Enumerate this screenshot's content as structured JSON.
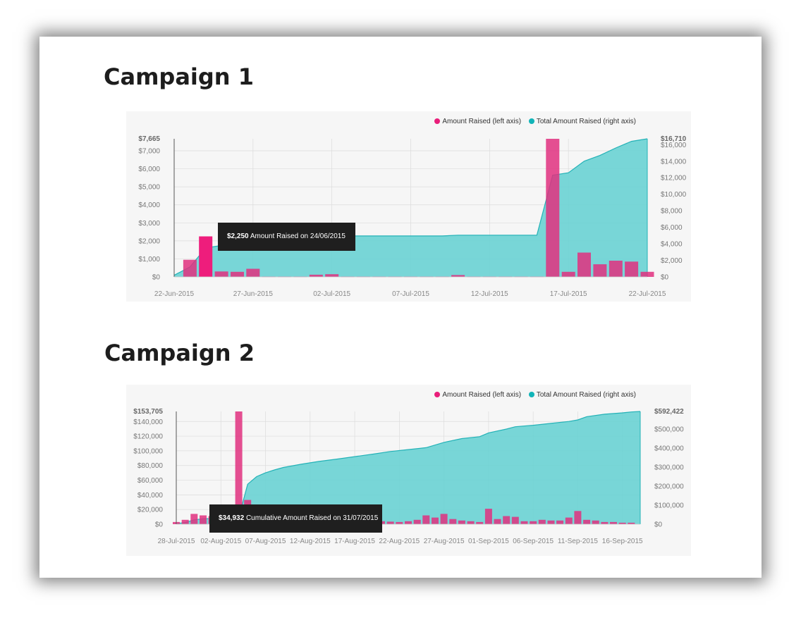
{
  "headings": [
    "Campaign 1",
    "Campaign 2"
  ],
  "colors": {
    "bar": "#e0307f",
    "bar_highlight": "#ee1d7c",
    "area_fill": "#67d1d3",
    "area_line": "#24b2b7",
    "axis_text": "#777777",
    "grid": "#dcdcdc"
  },
  "chart_data": [
    {
      "type": "bar+area",
      "legend": [
        {
          "label": "Amount Raised (left axis)",
          "color": "#e91e7a"
        },
        {
          "label": "Total Amount Raised (right axis)",
          "color": "#12b4b8"
        }
      ],
      "left_axis": {
        "ticks": [
          "$0",
          "$1,000",
          "$2,000",
          "$3,000",
          "$4,000",
          "$5,000",
          "$6,000",
          "$7,000"
        ],
        "tick_values": [
          0,
          1000,
          2000,
          3000,
          4000,
          5000,
          6000,
          7000
        ],
        "max_label": "$7,665",
        "max": 7665
      },
      "right_axis": {
        "ticks": [
          "$0",
          "$2,000",
          "$4,000",
          "$6,000",
          "$8,000",
          "$10,000",
          "$12,000",
          "$14,000",
          "$16,000"
        ],
        "tick_values": [
          0,
          2000,
          4000,
          6000,
          8000,
          10000,
          12000,
          14000,
          16000
        ],
        "max_label": "$16,710",
        "max": 16710
      },
      "x_labels": [
        "22-Jun-2015",
        "27-Jun-2015",
        "02-Jul-2015",
        "07-Jul-2015",
        "12-Jul-2015",
        "17-Jul-2015",
        "22-Jul-2015"
      ],
      "x_label_days": [
        0,
        5,
        10,
        15,
        20,
        25,
        30
      ],
      "bars_left": [
        {
          "day": 1,
          "value": 950
        },
        {
          "day": 2,
          "value": 2250,
          "highlight": true
        },
        {
          "day": 3,
          "value": 300
        },
        {
          "day": 4,
          "value": 280
        },
        {
          "day": 5,
          "value": 450
        },
        {
          "day": 6,
          "value": 20
        },
        {
          "day": 7,
          "value": 20
        },
        {
          "day": 8,
          "value": 20
        },
        {
          "day": 9,
          "value": 120
        },
        {
          "day": 10,
          "value": 150
        },
        {
          "day": 11,
          "value": 20
        },
        {
          "day": 12,
          "value": 20
        },
        {
          "day": 13,
          "value": 20
        },
        {
          "day": 14,
          "value": 20
        },
        {
          "day": 15,
          "value": 20
        },
        {
          "day": 16,
          "value": 20
        },
        {
          "day": 17,
          "value": 20
        },
        {
          "day": 18,
          "value": 100
        },
        {
          "day": 19,
          "value": 20
        },
        {
          "day": 20,
          "value": 20
        },
        {
          "day": 21,
          "value": 20
        },
        {
          "day": 22,
          "value": 20
        },
        {
          "day": 23,
          "value": 20
        },
        {
          "day": 24,
          "value": 7665
        },
        {
          "day": 25,
          "value": 280
        },
        {
          "day": 26,
          "value": 1350
        },
        {
          "day": 27,
          "value": 700
        },
        {
          "day": 28,
          "value": 900
        },
        {
          "day": 29,
          "value": 850
        },
        {
          "day": 30,
          "value": 280
        }
      ],
      "cumulative_right": [
        [
          0,
          200
        ],
        [
          1,
          1200
        ],
        [
          2,
          3500
        ],
        [
          3,
          3800
        ],
        [
          4,
          4100
        ],
        [
          5,
          4600
        ],
        [
          6,
          4650
        ],
        [
          7,
          4650
        ],
        [
          8,
          4700
        ],
        [
          9,
          4800
        ],
        [
          10,
          4950
        ],
        [
          15,
          4950
        ],
        [
          17,
          4950
        ],
        [
          18,
          5050
        ],
        [
          23,
          5050
        ],
        [
          24,
          12300
        ],
        [
          25,
          12600
        ],
        [
          26,
          14000
        ],
        [
          27,
          14700
        ],
        [
          28,
          15600
        ],
        [
          29,
          16400
        ],
        [
          30,
          16710
        ]
      ],
      "tooltip": {
        "value": "$2,250",
        "text": "Amount Raised on 24/06/2015"
      }
    },
    {
      "type": "bar+area",
      "legend": [
        {
          "label": "Amount Raised (left axis)",
          "color": "#e91e7a"
        },
        {
          "label": "Total Amount Raised (right axis)",
          "color": "#12b4b8"
        }
      ],
      "left_axis": {
        "ticks": [
          "$0",
          "$20,000",
          "$40,000",
          "$60,000",
          "$80,000",
          "$100,000",
          "$120,000",
          "$140,000"
        ],
        "tick_values": [
          0,
          20000,
          40000,
          60000,
          80000,
          100000,
          120000,
          140000
        ],
        "max_label": "$153,705",
        "max": 153705
      },
      "right_axis": {
        "ticks": [
          "$0",
          "$100,000",
          "$200,000",
          "$300,000",
          "$400,000",
          "$500,000"
        ],
        "tick_values": [
          0,
          100000,
          200000,
          300000,
          400000,
          500000
        ],
        "max_label": "$592,422",
        "max": 592422
      },
      "x_labels": [
        "28-Jul-2015",
        "02-Aug-2015",
        "07-Aug-2015",
        "12-Aug-2015",
        "17-Aug-2015",
        "22-Aug-2015",
        "27-Aug-2015",
        "01-Sep-2015",
        "06-Sep-2015",
        "11-Sep-2015",
        "16-Sep-2015"
      ],
      "x_label_days": [
        0,
        5,
        10,
        15,
        20,
        25,
        30,
        35,
        40,
        45,
        50
      ],
      "bars_left": [
        {
          "day": 0,
          "value": 3000
        },
        {
          "day": 1,
          "value": 6000
        },
        {
          "day": 2,
          "value": 14000
        },
        {
          "day": 3,
          "value": 12000
        },
        {
          "day": 4,
          "value": 11000
        },
        {
          "day": 5,
          "value": 5000
        },
        {
          "day": 6,
          "value": 4000
        },
        {
          "day": 7,
          "value": 153705
        },
        {
          "day": 8,
          "value": 33000
        },
        {
          "day": 9,
          "value": 6000
        },
        {
          "day": 10,
          "value": 4000
        },
        {
          "day": 11,
          "value": 3000
        },
        {
          "day": 12,
          "value": 3000
        },
        {
          "day": 13,
          "value": 4000
        },
        {
          "day": 14,
          "value": 3000
        },
        {
          "day": 15,
          "value": 3000
        },
        {
          "day": 16,
          "value": 3000
        },
        {
          "day": 17,
          "value": 3000
        },
        {
          "day": 18,
          "value": 3000
        },
        {
          "day": 19,
          "value": 3000
        },
        {
          "day": 20,
          "value": 3000
        },
        {
          "day": 21,
          "value": 3000
        },
        {
          "day": 22,
          "value": 3000
        },
        {
          "day": 23,
          "value": 4000
        },
        {
          "day": 24,
          "value": 3500
        },
        {
          "day": 25,
          "value": 3000
        },
        {
          "day": 26,
          "value": 4000
        },
        {
          "day": 27,
          "value": 6000
        },
        {
          "day": 28,
          "value": 12000
        },
        {
          "day": 29,
          "value": 9000
        },
        {
          "day": 30,
          "value": 14000
        },
        {
          "day": 31,
          "value": 7000
        },
        {
          "day": 32,
          "value": 5000
        },
        {
          "day": 33,
          "value": 4000
        },
        {
          "day": 34,
          "value": 3000
        },
        {
          "day": 35,
          "value": 21000
        },
        {
          "day": 36,
          "value": 7000
        },
        {
          "day": 37,
          "value": 11000
        },
        {
          "day": 38,
          "value": 10000
        },
        {
          "day": 39,
          "value": 4000
        },
        {
          "day": 40,
          "value": 4000
        },
        {
          "day": 41,
          "value": 6000
        },
        {
          "day": 42,
          "value": 5000
        },
        {
          "day": 43,
          "value": 5000
        },
        {
          "day": 44,
          "value": 9000
        },
        {
          "day": 45,
          "value": 18000
        },
        {
          "day": 46,
          "value": 6000
        },
        {
          "day": 47,
          "value": 5000
        },
        {
          "day": 48,
          "value": 3000
        },
        {
          "day": 49,
          "value": 3000
        },
        {
          "day": 50,
          "value": 2000
        },
        {
          "day": 51,
          "value": 2000
        }
      ],
      "cumulative_right": [
        [
          0,
          3000
        ],
        [
          1,
          9000
        ],
        [
          2,
          23000
        ],
        [
          3,
          28000
        ],
        [
          4,
          30000
        ],
        [
          5,
          32000
        ],
        [
          6,
          33000
        ],
        [
          7,
          34932
        ],
        [
          8,
          210000
        ],
        [
          9,
          250000
        ],
        [
          10,
          270000
        ],
        [
          11,
          285000
        ],
        [
          12,
          298000
        ],
        [
          14,
          315000
        ],
        [
          16,
          330000
        ],
        [
          18,
          342000
        ],
        [
          20,
          355000
        ],
        [
          22,
          368000
        ],
        [
          24,
          382000
        ],
        [
          26,
          392000
        ],
        [
          28,
          402000
        ],
        [
          30,
          430000
        ],
        [
          32,
          450000
        ],
        [
          34,
          460000
        ],
        [
          35,
          480000
        ],
        [
          37,
          500000
        ],
        [
          38,
          512000
        ],
        [
          40,
          520000
        ],
        [
          42,
          530000
        ],
        [
          44,
          540000
        ],
        [
          45,
          548000
        ],
        [
          46,
          565000
        ],
        [
          48,
          578000
        ],
        [
          50,
          585000
        ],
        [
          51,
          590000
        ],
        [
          52,
          592422
        ]
      ],
      "tooltip": {
        "value": "$34,932",
        "text": "Cumulative Amount Raised on 31/07/2015"
      }
    }
  ]
}
